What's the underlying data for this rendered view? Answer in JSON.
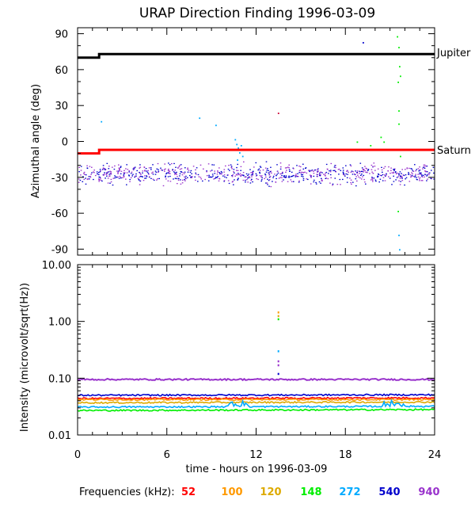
{
  "chart_data": [
    {
      "type": "scatter",
      "title": "URAP Direction Finding  1996-03-09",
      "xlabel": "",
      "ylabel": "Azimuthal angle (deg)",
      "xlim": [
        0,
        24
      ],
      "ylim": [
        -95,
        95
      ],
      "xticks": [
        "0",
        "6",
        "12",
        "18",
        "24"
      ],
      "yticks": [
        "90",
        "60",
        "30",
        "0",
        "-30",
        "-60",
        "-90"
      ],
      "reference_lines": [
        {
          "name": "Jupiter",
          "color": "#000000",
          "points": [
            [
              0,
              70
            ],
            [
              1.45,
              70
            ],
            [
              1.45,
              73
            ],
            [
              24,
              73
            ]
          ]
        },
        {
          "name": "Saturn",
          "color": "#ff0000",
          "points": [
            [
              0,
              -10
            ],
            [
              1.45,
              -10
            ],
            [
              1.45,
              -7
            ],
            [
              24,
              -7
            ]
          ]
        }
      ],
      "scatter_summary": {
        "main_band_center_deg": -27,
        "main_band_spread_deg": 12,
        "main_band_colors": [
          "#0000cc",
          "#9933cc"
        ]
      },
      "scatter_outliers": [
        {
          "x": 1.6,
          "y": 17,
          "color": "#00aaff"
        },
        {
          "x": 8.2,
          "y": 20,
          "color": "#00aaff"
        },
        {
          "x": 9.3,
          "y": 14,
          "color": "#00aaff"
        },
        {
          "x": 10.6,
          "y": 2,
          "color": "#00aaff"
        },
        {
          "x": 10.7,
          "y": -2,
          "color": "#00aaff"
        },
        {
          "x": 10.8,
          "y": -5,
          "color": "#00aaff"
        },
        {
          "x": 10.9,
          "y": -9,
          "color": "#00aaff"
        },
        {
          "x": 11.0,
          "y": -3,
          "color": "#00aaff"
        },
        {
          "x": 11.1,
          "y": -12,
          "color": "#00aaff"
        },
        {
          "x": 10.75,
          "y": -15,
          "color": "#00aaff"
        },
        {
          "x": 13.5,
          "y": 24,
          "color": "#cc0033"
        },
        {
          "x": 19.2,
          "y": 83,
          "color": "#0000cc"
        },
        {
          "x": 18.8,
          "y": 0,
          "color": "#00ee00"
        },
        {
          "x": 19.7,
          "y": -3,
          "color": "#00ee00"
        },
        {
          "x": 20.4,
          "y": 4,
          "color": "#00ee00"
        },
        {
          "x": 20.6,
          "y": 0,
          "color": "#00ee00"
        },
        {
          "x": 21.5,
          "y": 88,
          "color": "#00ee00"
        },
        {
          "x": 21.6,
          "y": 79,
          "color": "#00ee00"
        },
        {
          "x": 21.65,
          "y": 63,
          "color": "#00ee00"
        },
        {
          "x": 21.7,
          "y": 55,
          "color": "#00ee00"
        },
        {
          "x": 21.55,
          "y": 50,
          "color": "#00ee00"
        },
        {
          "x": 21.6,
          "y": 26,
          "color": "#00ee00"
        },
        {
          "x": 21.6,
          "y": 15,
          "color": "#00ee00"
        },
        {
          "x": 21.7,
          "y": -12,
          "color": "#00ee00"
        },
        {
          "x": 21.55,
          "y": -58,
          "color": "#00ee00"
        },
        {
          "x": 21.6,
          "y": -78,
          "color": "#00aaff"
        },
        {
          "x": 21.65,
          "y": -90,
          "color": "#00aaff"
        }
      ]
    },
    {
      "type": "line",
      "title": "",
      "xlabel": "time - hours on 1996-03-09",
      "ylabel": "Intensity (microvolt/sqrt(Hz))",
      "xlim": [
        0,
        24
      ],
      "ylim": [
        0.01,
        10
      ],
      "yscale": "log",
      "xticks": [
        "0",
        "6",
        "12",
        "18",
        "24"
      ],
      "yticks": [
        "10.00",
        "1.00",
        "0.10",
        "0.01"
      ],
      "series": [
        {
          "frequency": "52",
          "color": "#ff0000",
          "values": [
            [
              0,
              0.044
            ],
            [
              24,
              0.045
            ]
          ]
        },
        {
          "frequency": "100",
          "color": "#ff9900",
          "values": [
            [
              0,
              0.042
            ],
            [
              24,
              0.042
            ]
          ]
        },
        {
          "frequency": "120",
          "color": "#ddaa00",
          "values": [
            [
              0,
              0.037
            ],
            [
              24,
              0.038
            ]
          ]
        },
        {
          "frequency": "148",
          "color": "#00ee00",
          "values": [
            [
              0,
              0.027
            ],
            [
              24,
              0.028
            ]
          ]
        },
        {
          "frequency": "272",
          "color": "#00aaff",
          "values": [
            [
              0,
              0.031
            ],
            [
              24,
              0.032
            ]
          ]
        },
        {
          "frequency": "540",
          "color": "#0000cc",
          "values": [
            [
              0,
              0.05
            ],
            [
              24,
              0.051
            ]
          ]
        },
        {
          "frequency": "940",
          "color": "#9933cc",
          "values": [
            [
              0,
              0.095
            ],
            [
              24,
              0.095
            ]
          ]
        }
      ],
      "spike_points": [
        {
          "x": 13.5,
          "y": 1.45,
          "color": "#ff9900"
        },
        {
          "x": 13.5,
          "y": 1.25,
          "color": "#ddaa00"
        },
        {
          "x": 13.5,
          "y": 1.1,
          "color": "#00ee00"
        },
        {
          "x": 13.5,
          "y": 0.3,
          "color": "#00aaff"
        },
        {
          "x": 13.5,
          "y": 0.2,
          "color": "#9933cc"
        },
        {
          "x": 13.5,
          "y": 0.17,
          "color": "#9933cc"
        },
        {
          "x": 13.5,
          "y": 0.12,
          "color": "#0000cc"
        }
      ]
    }
  ],
  "legend": {
    "label": "Frequencies (kHz):",
    "items": [
      {
        "text": "52",
        "color": "#ff0000"
      },
      {
        "text": "100",
        "color": "#ff9900"
      },
      {
        "text": "120",
        "color": "#ddaa00"
      },
      {
        "text": "148",
        "color": "#00ee00"
      },
      {
        "text": "272",
        "color": "#00aaff"
      },
      {
        "text": "540",
        "color": "#0000cc"
      },
      {
        "text": "940",
        "color": "#9933cc"
      }
    ]
  }
}
